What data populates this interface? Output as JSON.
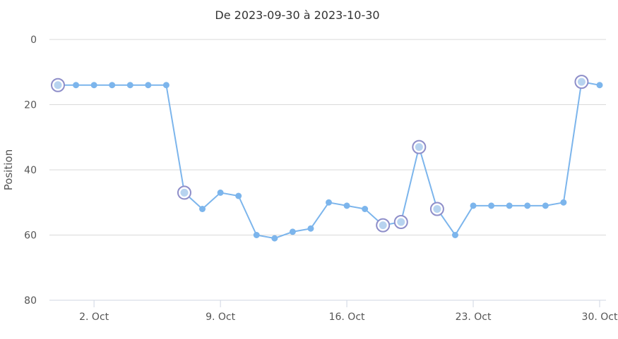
{
  "chart_data": {
    "type": "line",
    "title": "De 2023-09-30 à 2023-10-30",
    "ylabel": "Position",
    "xlabel": "",
    "y_reversed": true,
    "ylim": [
      0,
      80
    ],
    "yticks": [
      0,
      20,
      40,
      60,
      80
    ],
    "x_start": "2023-09-30",
    "x_end": "2023-10-30",
    "xticks": [
      {
        "date": "2023-10-02",
        "label": "2. Oct"
      },
      {
        "date": "2023-10-09",
        "label": "9. Oct"
      },
      {
        "date": "2023-10-16",
        "label": "16. Oct"
      },
      {
        "date": "2023-10-23",
        "label": "23. Oct"
      },
      {
        "date": "2023-10-30",
        "label": "30. Oct"
      }
    ],
    "series": [
      {
        "color": "#7cb5ec",
        "points": [
          {
            "date": "2023-09-30",
            "y": 14,
            "marker": true
          },
          {
            "date": "2023-10-01",
            "y": 14
          },
          {
            "date": "2023-10-02",
            "y": 14
          },
          {
            "date": "2023-10-03",
            "y": 14
          },
          {
            "date": "2023-10-04",
            "y": 14
          },
          {
            "date": "2023-10-05",
            "y": 14
          },
          {
            "date": "2023-10-06",
            "y": 14
          },
          {
            "date": "2023-10-07",
            "y": 47,
            "marker": true
          },
          {
            "date": "2023-10-08",
            "y": 52
          },
          {
            "date": "2023-10-09",
            "y": 47
          },
          {
            "date": "2023-10-10",
            "y": 48
          },
          {
            "date": "2023-10-11",
            "y": 60
          },
          {
            "date": "2023-10-12",
            "y": 61
          },
          {
            "date": "2023-10-13",
            "y": 59
          },
          {
            "date": "2023-10-14",
            "y": 58
          },
          {
            "date": "2023-10-15",
            "y": 50
          },
          {
            "date": "2023-10-16",
            "y": 51
          },
          {
            "date": "2023-10-17",
            "y": 52
          },
          {
            "date": "2023-10-18",
            "y": 57,
            "marker": true
          },
          {
            "date": "2023-10-19",
            "y": 56,
            "marker": true
          },
          {
            "date": "2023-10-20",
            "y": 33,
            "marker": true
          },
          {
            "date": "2023-10-21",
            "y": 52,
            "marker": true
          },
          {
            "date": "2023-10-22",
            "y": 60
          },
          {
            "date": "2023-10-23",
            "y": 51
          },
          {
            "date": "2023-10-24",
            "y": 51
          },
          {
            "date": "2023-10-25",
            "y": 51
          },
          {
            "date": "2023-10-26",
            "y": 51
          },
          {
            "date": "2023-10-27",
            "y": 51
          },
          {
            "date": "2023-10-28",
            "y": 50
          },
          {
            "date": "2023-10-29",
            "y": 13,
            "marker": true
          },
          {
            "date": "2023-10-30",
            "y": 14
          }
        ]
      }
    ],
    "grid": true,
    "legend": "none"
  }
}
